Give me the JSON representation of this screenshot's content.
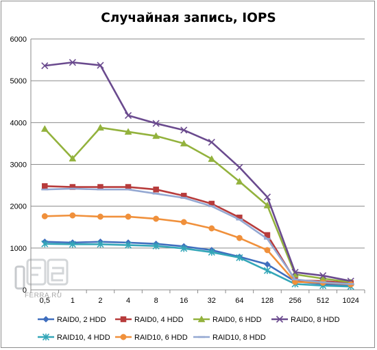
{
  "chart_data": {
    "type": "line",
    "title": "Случайная запись, IOPS",
    "xlabel": "",
    "ylabel": "",
    "categories": [
      "0,5",
      "1",
      "2",
      "4",
      "8",
      "16",
      "32",
      "64",
      "128",
      "256",
      "512",
      "1024"
    ],
    "ylim": [
      0,
      6000
    ],
    "yticks": [
      0,
      1000,
      2000,
      3000,
      4000,
      5000,
      6000
    ],
    "grid": "horizontal",
    "legend_position": "bottom",
    "series": [
      {
        "name": "RAID0, 2 HDD",
        "color": "#3f6ebe",
        "marker": "diamond",
        "values": [
          1150,
          1130,
          1150,
          1130,
          1100,
          1040,
          950,
          790,
          610,
          200,
          140,
          110
        ]
      },
      {
        "name": "RAID0, 4 HDD",
        "color": "#b73b3b",
        "marker": "square",
        "values": [
          2480,
          2460,
          2460,
          2460,
          2400,
          2250,
          2060,
          1730,
          1310,
          230,
          210,
          160
        ]
      },
      {
        "name": "RAID0, 6 HDD",
        "color": "#93b23d",
        "marker": "triangle",
        "values": [
          3850,
          3140,
          3880,
          3780,
          3680,
          3500,
          3130,
          2590,
          2020,
          370,
          270,
          180
        ]
      },
      {
        "name": "RAID0, 8 HDD",
        "color": "#6a4a8e",
        "marker": "x",
        "values": [
          5360,
          5440,
          5370,
          4170,
          3980,
          3820,
          3530,
          2930,
          2220,
          420,
          340,
          210
        ]
      },
      {
        "name": "RAID10, 4 HDD",
        "color": "#33a6b8",
        "marker": "star",
        "values": [
          1100,
          1090,
          1090,
          1070,
          1050,
          990,
          900,
          770,
          460,
          140,
          100,
          80
        ]
      },
      {
        "name": "RAID10, 6 HDD",
        "color": "#f0903b",
        "marker": "circle",
        "values": [
          1760,
          1780,
          1750,
          1750,
          1700,
          1620,
          1470,
          1240,
          950,
          190,
          170,
          130
        ]
      },
      {
        "name": "RAID10, 8 HDD",
        "color": "#94a8d2",
        "marker": "dash",
        "values": [
          2400,
          2420,
          2400,
          2400,
          2300,
          2200,
          2000,
          1680,
          1220,
          250,
          180,
          140
        ]
      }
    ]
  },
  "watermark": {
    "text": "FERRA.RU",
    "logo_name": "ferra-logo-icon"
  }
}
